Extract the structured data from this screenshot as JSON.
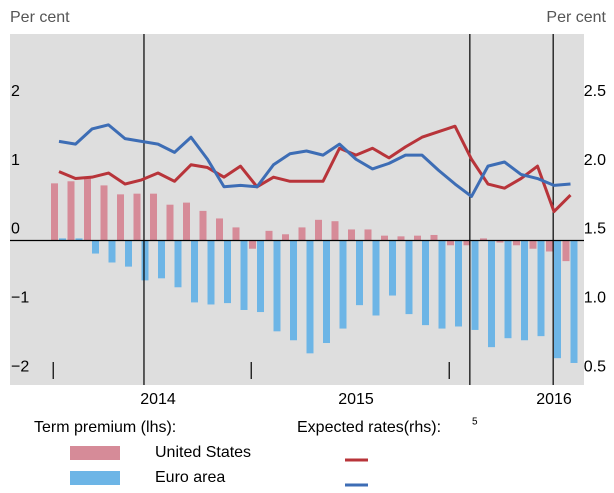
{
  "chart_data": {
    "type": "bar_line",
    "y_label": "Per cent",
    "y2_label": "Per cent",
    "categories": [
      null,
      null,
      null,
      null,
      null,
      null,
      "2014",
      null,
      null,
      null,
      null,
      null,
      null,
      null,
      null,
      null,
      null,
      null,
      "2015",
      null,
      null,
      null,
      null,
      null,
      null,
      null,
      null,
      null,
      null,
      null,
      "2016",
      null
    ],
    "ylim": [
      -2.1,
      3.0
    ],
    "yticks": [
      {
        "value": -2,
        "label": "−2"
      },
      {
        "value": -1,
        "label": "−1"
      },
      0,
      1,
      2
    ],
    "y2lim": [
      0.45,
      3.0
    ],
    "y2ticks": [
      {
        "value": 0.5,
        "label": "0.5"
      },
      {
        "value": 1.0,
        "label": "1.0"
      },
      {
        "value": 1.5,
        "label": "1.5"
      },
      {
        "value": 2.0,
        "label": "2.0"
      },
      {
        "value": 2.5,
        "label": "2.5"
      }
    ],
    "legend_groups": [
      {
        "title": "Term premium (lhs):"
      },
      {
        "title": "Expected rates(rhs):",
        "note": "5"
      }
    ],
    "series": [
      {
        "name": "United States",
        "kind": "bar",
        "group": 0,
        "color": "#d68b98",
        "values": [
          0.83,
          0.86,
          0.9,
          0.8,
          0.67,
          0.68,
          0.68,
          0.52,
          0.55,
          0.43,
          0.32,
          0.19,
          -0.12,
          0.14,
          0.09,
          0.19,
          0.3,
          0.28,
          0.16,
          0.16,
          0.07,
          0.06,
          0.07,
          0.08,
          -0.07,
          -0.07,
          0.03,
          -0.03,
          -0.07,
          -0.12,
          -0.16,
          -0.3
        ]
      },
      {
        "name": "Euro area",
        "kind": "bar",
        "group": 0,
        "color": "#6db5e6",
        "values": [
          0.03,
          0.03,
          -0.19,
          -0.32,
          -0.38,
          -0.58,
          -0.55,
          -0.68,
          -0.9,
          -0.93,
          -0.91,
          -1.01,
          -1.04,
          -1.32,
          -1.45,
          -1.64,
          -1.49,
          -1.28,
          -0.94,
          -1.09,
          -0.8,
          -1.07,
          -1.23,
          -1.28,
          -1.25,
          -1.3,
          -1.55,
          -1.42,
          -1.45,
          -1.39,
          -1.71,
          -1.78
        ]
      },
      {
        "name": "United States",
        "kind": "line",
        "group": 1,
        "axis": "y2",
        "color": "#b8343a",
        "values": [
          2.0,
          1.95,
          1.96,
          1.99,
          1.91,
          1.94,
          1.99,
          1.93,
          2.05,
          2.03,
          1.96,
          2.04,
          1.89,
          1.96,
          1.93,
          1.93,
          1.93,
          2.17,
          2.12,
          2.17,
          2.1,
          2.18,
          2.25,
          2.29,
          2.33,
          2.09,
          1.91,
          1.88,
          1.95,
          2.04,
          1.71,
          1.83
        ]
      },
      {
        "name": "Euro area",
        "kind": "line",
        "group": 1,
        "axis": "y2",
        "color": "#3d6db5",
        "values": [
          2.22,
          2.2,
          2.31,
          2.34,
          2.24,
          2.22,
          2.2,
          2.14,
          2.25,
          2.09,
          1.89,
          1.9,
          1.89,
          2.05,
          2.13,
          2.15,
          2.12,
          2.2,
          2.09,
          2.02,
          2.06,
          2.12,
          2.12,
          2.01,
          1.91,
          1.82,
          2.04,
          2.07,
          1.98,
          1.95,
          1.9,
          1.91
        ]
      }
    ]
  }
}
